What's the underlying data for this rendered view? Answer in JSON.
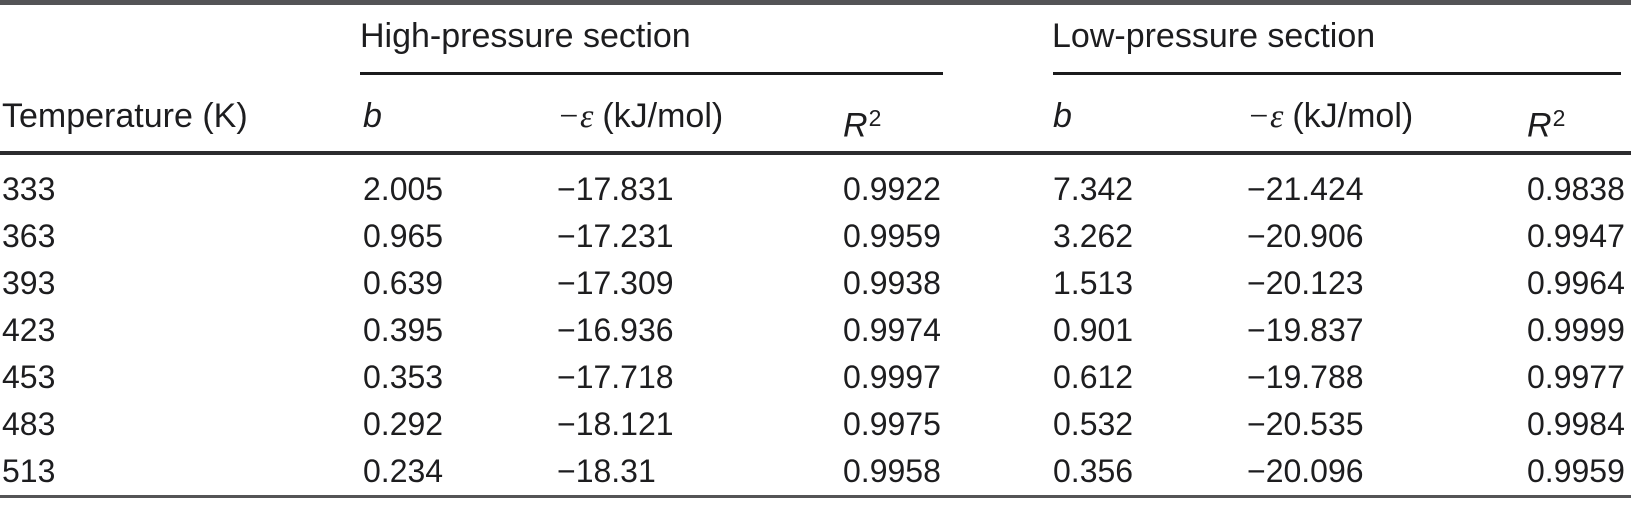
{
  "table": {
    "col_groups": [
      {
        "label": "High-pressure section"
      },
      {
        "label": "Low-pressure section"
      }
    ],
    "columns": {
      "temperature": "Temperature (K)",
      "b": "b",
      "eps": "−ε",
      "eps_unit": "(kJ/mol)",
      "r_base": "R",
      "r_sup": "2"
    },
    "rows": [
      [
        "333",
        "2.005",
        "−17.831",
        "0.9922",
        "7.342",
        "−21.424",
        "0.9838"
      ],
      [
        "363",
        "0.965",
        "−17.231",
        "0.9959",
        "3.262",
        "−20.906",
        "0.9947"
      ],
      [
        "393",
        "0.639",
        "−17.309",
        "0.9938",
        "1.513",
        "−20.123",
        "0.9964"
      ],
      [
        "423",
        "0.395",
        "−16.936",
        "0.9974",
        "0.901",
        "−19.837",
        "0.9999"
      ],
      [
        "453",
        "0.353",
        "−17.718",
        "0.9997",
        "0.612",
        "−19.788",
        "0.9977"
      ],
      [
        "483",
        "0.292",
        "−18.121",
        "0.9975",
        "0.532",
        "−20.535",
        "0.9984"
      ],
      [
        "513",
        "0.234",
        "−18.31",
        "0.9958",
        "0.356",
        "−20.096",
        "0.9959"
      ]
    ]
  },
  "colors": {
    "text": "#1d1d1f",
    "rule_outer": "#545456",
    "rule_spanner": "#1b1b1d",
    "rule_header": "#2c2c2e"
  },
  "chart_data": {
    "type": "table",
    "column_groups": [
      "",
      "High-pressure section",
      "High-pressure section",
      "High-pressure section",
      "Low-pressure section",
      "Low-pressure section",
      "Low-pressure section"
    ],
    "columns": [
      "Temperature (K)",
      "b",
      "−ε (kJ/mol)",
      "R^2",
      "b",
      "−ε (kJ/mol)",
      "R^2"
    ],
    "rows": [
      [
        333,
        2.005,
        -17.831,
        0.9922,
        7.342,
        -21.424,
        0.9838
      ],
      [
        363,
        0.965,
        -17.231,
        0.9959,
        3.262,
        -20.906,
        0.9947
      ],
      [
        393,
        0.639,
        -17.309,
        0.9938,
        1.513,
        -20.123,
        0.9964
      ],
      [
        423,
        0.395,
        -16.936,
        0.9974,
        0.901,
        -19.837,
        0.9999
      ],
      [
        453,
        0.353,
        -17.718,
        0.9997,
        0.612,
        -19.788,
        0.9977
      ],
      [
        483,
        0.292,
        -18.121,
        0.9975,
        0.532,
        -20.535,
        0.9984
      ],
      [
        513,
        0.234,
        -18.31,
        0.9958,
        0.356,
        -20.096,
        0.9959
      ]
    ]
  }
}
